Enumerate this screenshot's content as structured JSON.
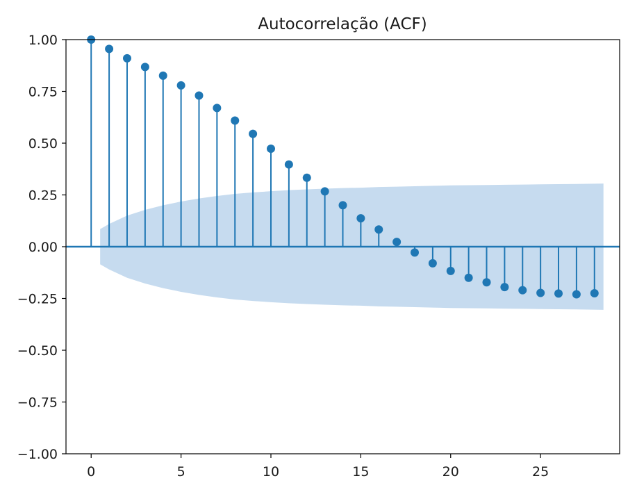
{
  "chart_data": {
    "type": "stem",
    "title": "Autocorrelação (ACF)",
    "xlabel": "",
    "ylabel": "",
    "xlim": [
      -1.4,
      29.4
    ],
    "ylim": [
      -1.0,
      1.0
    ],
    "x_ticks": [
      0,
      5,
      10,
      15,
      20,
      25
    ],
    "x_tick_labels": [
      "0",
      "5",
      "10",
      "15",
      "20",
      "25"
    ],
    "y_ticks": [
      1.0,
      0.75,
      0.5,
      0.25,
      0.0,
      -0.25,
      -0.5,
      -0.75,
      -1.0
    ],
    "y_tick_labels": [
      "1.00",
      "0.75",
      "0.50",
      "0.25",
      "0.00",
      "−0.25",
      "−0.50",
      "−0.75",
      "−1.00"
    ],
    "grid": false,
    "legend": "none",
    "colors": {
      "marker": "#1f77b4",
      "band": "#c6dbef",
      "axis": "#000000"
    },
    "lags": [
      0,
      1,
      2,
      3,
      4,
      5,
      6,
      7,
      8,
      9,
      10,
      11,
      12,
      13,
      14,
      15,
      16,
      17,
      18,
      19,
      20,
      21,
      22,
      23,
      24,
      25,
      26,
      27,
      28
    ],
    "acf": [
      1.0,
      0.955,
      0.91,
      0.868,
      0.826,
      0.779,
      0.73,
      0.67,
      0.609,
      0.545,
      0.473,
      0.397,
      0.333,
      0.267,
      0.2,
      0.137,
      0.083,
      0.023,
      -0.028,
      -0.08,
      -0.117,
      -0.15,
      -0.172,
      -0.195,
      -0.21,
      -0.223,
      -0.226,
      -0.23,
      -0.225
    ],
    "confidence_band": {
      "lags": [
        0.5,
        1,
        2,
        3,
        4,
        5,
        6,
        7,
        8,
        9,
        10,
        11,
        12,
        13,
        14,
        15,
        16,
        17,
        18,
        19,
        20,
        21,
        22,
        23,
        24,
        25,
        26,
        27,
        28.5
      ],
      "upper": [
        0.085,
        0.11,
        0.15,
        0.178,
        0.2,
        0.218,
        0.233,
        0.245,
        0.255,
        0.262,
        0.268,
        0.273,
        0.277,
        0.28,
        0.283,
        0.285,
        0.288,
        0.29,
        0.292,
        0.294,
        0.296,
        0.297,
        0.298,
        0.299,
        0.3,
        0.301,
        0.302,
        0.303,
        0.305
      ]
    }
  }
}
